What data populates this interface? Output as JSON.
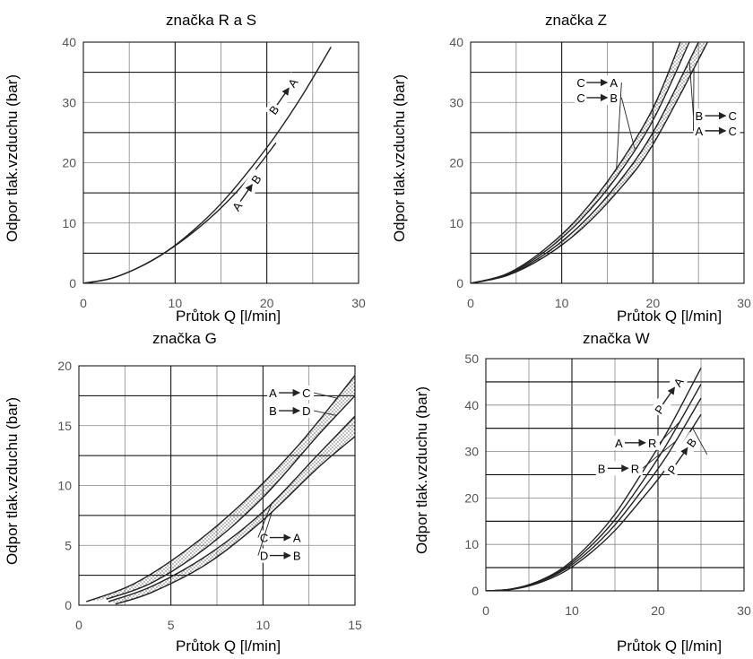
{
  "chart_data": [
    {
      "type": "line",
      "title": "značka R a S",
      "xlabel": "Průtok Q [l/min]",
      "ylabel": "Odpor tlak.vzduchu (bar)",
      "xlim": [
        0,
        30
      ],
      "ylim": [
        0,
        40
      ],
      "xticks": [
        "0",
        "10",
        "20",
        "30"
      ],
      "yticks": [
        "0",
        "10",
        "20",
        "30",
        "40"
      ],
      "grid": true,
      "series": [
        {
          "name": "B → A",
          "x": [
            0,
            3,
            6,
            9,
            12,
            15,
            18,
            21,
            24,
            27
          ],
          "values": [
            0,
            0.8,
            2.6,
            5.2,
            8.8,
            13.2,
            18.6,
            24.6,
            31.5,
            39.2
          ]
        },
        {
          "name": "A → B",
          "x": [
            0,
            3,
            6,
            9,
            12,
            15,
            18,
            21
          ],
          "values": [
            0,
            0.8,
            2.6,
            5.2,
            8.5,
            12.5,
            17.4,
            23.3
          ]
        }
      ],
      "annotations": [
        {
          "text": "B → A",
          "at": [
            22,
            31
          ]
        },
        {
          "text": "A → B",
          "at": [
            18,
            15
          ]
        }
      ]
    },
    {
      "type": "line",
      "title": "značka Z",
      "xlabel": "Průtok Q [l/min]",
      "ylabel": "Odpor tlak.vzduchu (bar)",
      "xlim": [
        0,
        30
      ],
      "ylim": [
        0,
        40
      ],
      "xticks": [
        "0",
        "10",
        "20",
        "30"
      ],
      "yticks": [
        "0",
        "10",
        "20",
        "30",
        "40"
      ],
      "grid": true,
      "shaded_bands": true,
      "series": [
        {
          "name": "C → A",
          "x": [
            0,
            4,
            8,
            12,
            16,
            20,
            23
          ],
          "values": [
            0,
            1.6,
            5.5,
            11.2,
            19,
            29,
            40
          ]
        },
        {
          "name": "C → B",
          "x": [
            0,
            4,
            8,
            12,
            16,
            20,
            24
          ],
          "values": [
            0,
            1.5,
            5.1,
            10.4,
            17.6,
            27,
            40
          ]
        },
        {
          "name": "B → C",
          "x": [
            0,
            4,
            8,
            12,
            16,
            20,
            25
          ],
          "values": [
            0,
            1.4,
            4.7,
            9.6,
            16.3,
            25,
            40
          ]
        },
        {
          "name": "A → C",
          "x": [
            0,
            4,
            8,
            12,
            16,
            20,
            26
          ],
          "values": [
            0,
            1.3,
            4.3,
            8.8,
            15,
            23,
            40
          ]
        }
      ],
      "annotations": [
        {
          "text": "C → A",
          "at": [
            14,
            33
          ]
        },
        {
          "text": "C → B",
          "at": [
            14,
            30.5
          ]
        },
        {
          "text": "B → C",
          "at": [
            27,
            27.5
          ]
        },
        {
          "text": "A → C",
          "at": [
            27,
            25
          ]
        }
      ]
    },
    {
      "type": "line",
      "title": "značka G",
      "xlabel": "Průtok Q [l/min]",
      "ylabel": "Odpor tlak.vzduchu (bar)",
      "xlim": [
        0,
        15
      ],
      "ylim": [
        0,
        20
      ],
      "xticks": [
        "0",
        "5",
        "10",
        "15"
      ],
      "yticks": [
        "0",
        "5",
        "10",
        "15",
        "20"
      ],
      "grid": true,
      "shaded_bands": true,
      "series": [
        {
          "name": "A → C",
          "x": [
            0.4,
            3,
            6,
            9,
            12,
            15
          ],
          "values": [
            0.3,
            1.8,
            4.8,
            8.7,
            13.5,
            19.2
          ]
        },
        {
          "name": "B → D",
          "x": [
            1.5,
            4,
            7,
            10,
            13,
            15
          ],
          "values": [
            0.5,
            1.9,
            4.9,
            9,
            14.2,
            17.5
          ]
        },
        {
          "name": "C → A",
          "x": [
            1.6,
            4,
            7,
            10,
            13,
            15
          ],
          "values": [
            0.3,
            1.6,
            4.2,
            7.8,
            12.6,
            15.8
          ]
        },
        {
          "name": "D → B",
          "x": [
            2,
            4,
            7,
            10,
            13,
            15
          ],
          "values": [
            0.1,
            1.1,
            3.5,
            7.1,
            11.5,
            14.1
          ]
        }
      ],
      "annotations": [
        {
          "text": "A → C",
          "at": [
            11.5,
            17.6
          ]
        },
        {
          "text": "B → D",
          "at": [
            11.5,
            16.1
          ]
        },
        {
          "text": "C → A",
          "at": [
            11,
            5.5
          ]
        },
        {
          "text": "D → B",
          "at": [
            11,
            4
          ]
        }
      ]
    },
    {
      "type": "line",
      "title": "značka W",
      "xlabel": "Průtok Q [l/min]",
      "ylabel": "Odpor tlak.vzduchu (bar)",
      "xlim": [
        0,
        30
      ],
      "ylim": [
        0,
        50
      ],
      "xticks": [
        "0",
        "10",
        "20",
        "30"
      ],
      "yticks": [
        "0",
        "10",
        "20",
        "30",
        "40",
        "50"
      ],
      "grid": true,
      "series": [
        {
          "name": "P → A",
          "x": [
            0,
            3,
            6,
            9,
            12,
            15,
            18,
            21,
            25
          ],
          "values": [
            0,
            0.4,
            2,
            5,
            10,
            16.5,
            25,
            34,
            48
          ]
        },
        {
          "name": "A → R",
          "x": [
            0,
            3,
            6,
            9,
            12,
            15,
            18,
            21,
            25
          ],
          "values": [
            0,
            0.4,
            1.9,
            4.7,
            9.3,
            15.3,
            23,
            31.5,
            44.5
          ]
        },
        {
          "name": "B → R",
          "x": [
            0,
            3,
            6,
            9,
            12,
            15,
            18,
            21,
            25
          ],
          "values": [
            0,
            0.4,
            1.8,
            4.4,
            8.6,
            14.2,
            21.3,
            29,
            41.5
          ]
        },
        {
          "name": "P → B",
          "x": [
            0,
            3,
            6,
            9,
            12,
            15,
            18,
            21,
            25
          ],
          "values": [
            0,
            0.3,
            1.6,
            4,
            7.9,
            13,
            19.5,
            26.5,
            38
          ]
        }
      ],
      "annotations": [
        {
          "text": "P → A",
          "at": [
            21.5,
            42
          ]
        },
        {
          "text": "A → R",
          "at": [
            17.5,
            31.5
          ]
        },
        {
          "text": "B → R",
          "at": [
            15.5,
            26
          ]
        },
        {
          "text": "P → B",
          "at": [
            23,
            29
          ]
        }
      ]
    }
  ]
}
